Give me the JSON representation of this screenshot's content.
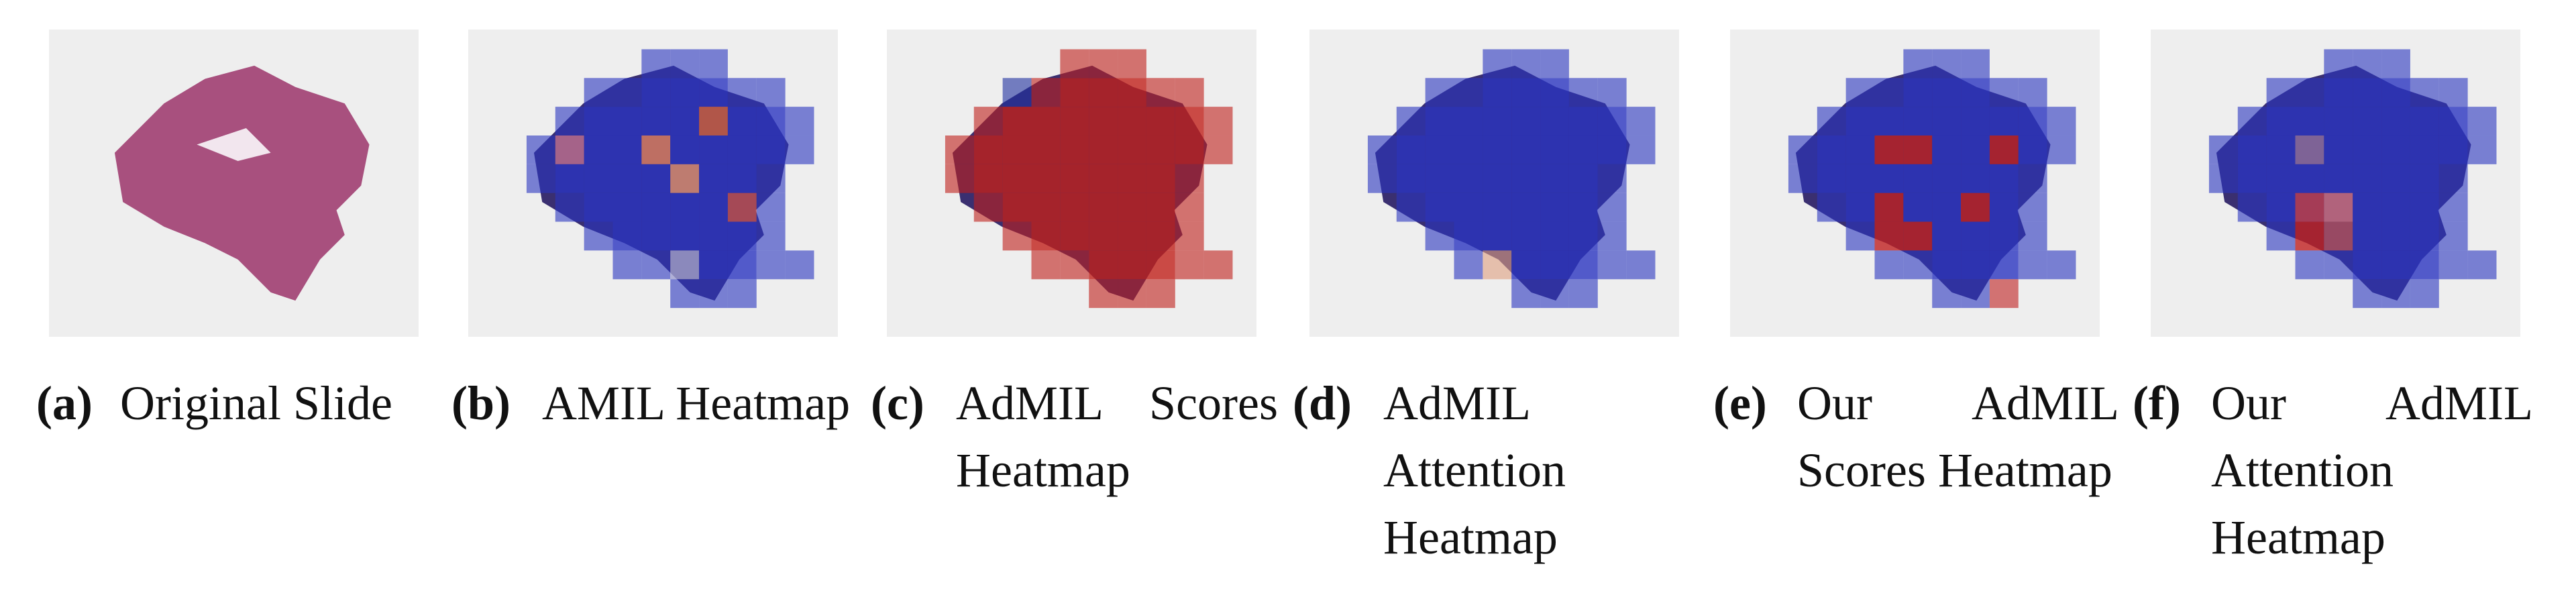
{
  "panels": [
    {
      "label": "(a)",
      "caption": "Original Slide"
    },
    {
      "label": "(b)",
      "caption": "AMIL Heatmap"
    },
    {
      "label": "(c)",
      "caption": "AdMIL Scores Heatmap"
    },
    {
      "label": "(d)",
      "caption": "AdMIL Attention Heatmap"
    },
    {
      "label": "(e)",
      "caption": "Our AdMIL Scores Heatmap"
    },
    {
      "label": "(f)",
      "caption": "Our AdMIL Attention Heatmap"
    }
  ]
}
